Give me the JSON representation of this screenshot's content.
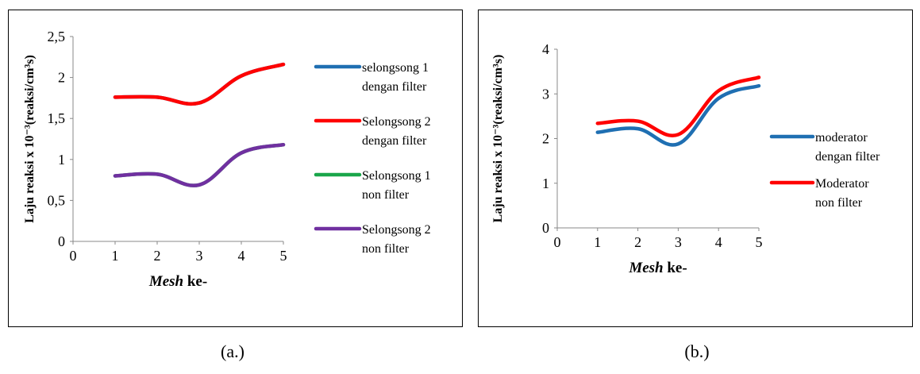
{
  "captions": {
    "a": "(a.)",
    "b": "(b.)"
  },
  "chart_data": [
    {
      "id": "a",
      "type": "line",
      "xlabel_italic": "Mesh",
      "xlabel_rest": " ke-",
      "ylabel": "Laju reaksi x 10⁻³(reaksi/cm³s)",
      "xlim": [
        0,
        5
      ],
      "ylim": [
        0,
        2.5
      ],
      "x_ticks": [
        "0",
        "1",
        "2",
        "3",
        "4",
        "5"
      ],
      "y_ticks": [
        {
          "value": 0,
          "label": "0"
        },
        {
          "value": 0.5,
          "label": "0,5"
        },
        {
          "value": 1,
          "label": "1"
        },
        {
          "value": 1.5,
          "label": "1,5"
        },
        {
          "value": 2,
          "label": "2"
        },
        {
          "value": 2.5,
          "label": "2,5"
        }
      ],
      "x": [
        1,
        2,
        3,
        4,
        5
      ],
      "series": [
        {
          "name": "selongsong 1 dengan filter",
          "legend_lines": [
            "selongsong 1",
            "dengan filter"
          ],
          "color": "#1f6fb2",
          "values": [
            1.76,
            1.76,
            1.69,
            2.02,
            2.16
          ]
        },
        {
          "name": "Selongsong 2 dengan filter",
          "legend_lines": [
            "Selongsong 2",
            "dengan filter"
          ],
          "color": "#ff0000",
          "values": [
            1.76,
            1.76,
            1.69,
            2.02,
            2.16
          ]
        },
        {
          "name": "Selongsong 1 non filter",
          "legend_lines": [
            "Selongsong 1",
            "non filter"
          ],
          "color": "#1aa64a",
          "values": [
            0.8,
            0.82,
            0.69,
            1.08,
            1.18
          ]
        },
        {
          "name": "Selongsong 2 non filter",
          "legend_lines": [
            "Selongsong 2",
            "non filter"
          ],
          "color": "#7030a0",
          "values": [
            0.8,
            0.82,
            0.69,
            1.08,
            1.18
          ]
        }
      ]
    },
    {
      "id": "b",
      "type": "line",
      "xlabel_italic": "Mesh",
      "xlabel_rest": " ke-",
      "ylabel": "Laju reaksi x 10⁻³(reaksi/cm³s)",
      "xlim": [
        0,
        5
      ],
      "ylim": [
        0,
        4
      ],
      "x_ticks": [
        "0",
        "1",
        "2",
        "3",
        "4",
        "5"
      ],
      "y_ticks": [
        {
          "value": 0,
          "label": "0"
        },
        {
          "value": 1,
          "label": "1"
        },
        {
          "value": 2,
          "label": "2"
        },
        {
          "value": 3,
          "label": "3"
        },
        {
          "value": 4,
          "label": "4"
        }
      ],
      "x": [
        1,
        2,
        3,
        4,
        5
      ],
      "series": [
        {
          "name": "moderator dengan filter",
          "legend_lines": [
            "moderator",
            "dengan filter"
          ],
          "color": "#1f6fb2",
          "values": [
            2.14,
            2.22,
            1.88,
            2.9,
            3.18
          ]
        },
        {
          "name": "Moderator non filter",
          "legend_lines": [
            "Moderator",
            "non filter"
          ],
          "color": "#ff0000",
          "values": [
            2.34,
            2.39,
            2.09,
            3.07,
            3.37
          ]
        }
      ]
    }
  ]
}
